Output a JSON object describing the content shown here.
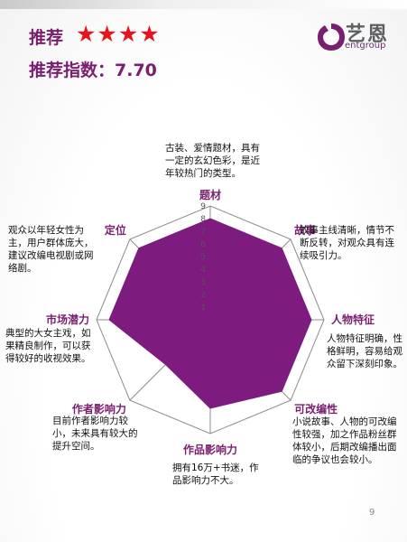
{
  "header": {
    "recommend_label": "推荐",
    "stars": "★★★★",
    "index_text": "推荐指数：7.70"
  },
  "logo": {
    "name_cn": "艺恩",
    "name_en": "entgroup",
    "brand_color": "#6b2d6e"
  },
  "chart_data": {
    "type": "radar",
    "axes": [
      "题材",
      "故事",
      "人物特征",
      "可改编性",
      "作品影响力",
      "作者影响力",
      "市场潜力",
      "定位"
    ],
    "values": [
      8,
      8,
      8,
      8,
      7,
      5,
      8,
      8
    ],
    "range": [
      0,
      9
    ],
    "ticks": [
      "1",
      "2",
      "3",
      "4",
      "5",
      "6",
      "7",
      "8",
      "9"
    ],
    "fill_color": "#7d1b7e",
    "grid": true
  },
  "notes": [
    {
      "axis": "题材",
      "text": "古装、爱情题材，具有一定的玄幻色彩，是近年较热门的类型。"
    },
    {
      "axis": "故事",
      "text": "故事主线清晰，情节不断反转，对观众具有连续吸引力。"
    },
    {
      "axis": "人物特征",
      "text": "人物特征明确，性格鲜明，容易给观众留下深刻印象。"
    },
    {
      "axis": "可改编性",
      "text": "小说故事、人物的可改编性较强，加之作品粉丝群体较小，后期改编播出面临的争议也会较小。"
    },
    {
      "axis": "作品影响力",
      "text": "拥有16万+书迷，作品影响力不大。"
    },
    {
      "axis": "作者影响力",
      "text": "目前作者影响力较小，未来具有较大的提升空间。"
    },
    {
      "axis": "市场潜力",
      "text": "典型的大女主戏，如果精良制作，可以获得较好的收视效果。"
    },
    {
      "axis": "定位",
      "text": "观众以年轻女性为主，用户群体庞大，建议改编电视剧或网络剧。"
    }
  ],
  "page_number": "9"
}
